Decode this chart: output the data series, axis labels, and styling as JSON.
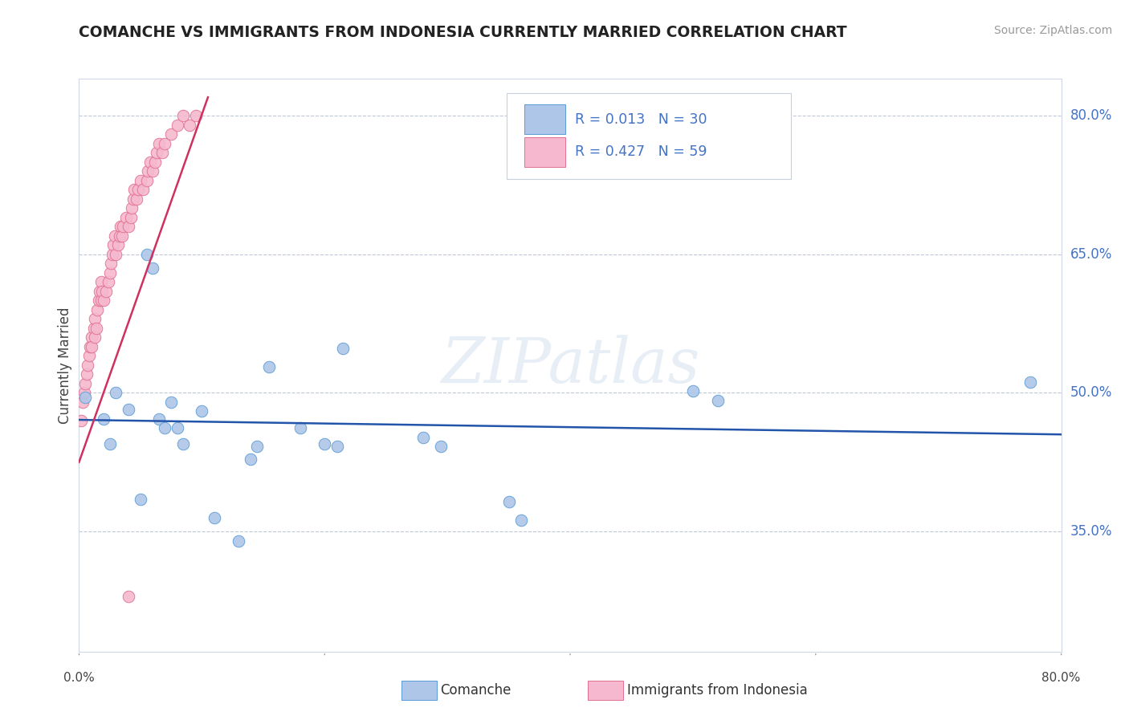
{
  "title": "COMANCHE VS IMMIGRANTS FROM INDONESIA CURRENTLY MARRIED CORRELATION CHART",
  "source_text": "Source: ZipAtlas.com",
  "ylabel": "Currently Married",
  "ytick_labels": [
    "80.0%",
    "65.0%",
    "50.0%",
    "35.0%"
  ],
  "ytick_values": [
    0.8,
    0.65,
    0.5,
    0.35
  ],
  "xlim": [
    0.0,
    0.8
  ],
  "ylim": [
    0.22,
    0.84
  ],
  "comanche_color": "#aec6e8",
  "indonesia_color": "#f5b8ce",
  "comanche_edge": "#5b9bd5",
  "indonesia_edge": "#e07090",
  "line_comanche": "#2255aa",
  "line_indonesia": "#d03060",
  "comanche_x": [
    0.005,
    0.02,
    0.025,
    0.03,
    0.04,
    0.05,
    0.055,
    0.06,
    0.065,
    0.07,
    0.075,
    0.08,
    0.085,
    0.1,
    0.11,
    0.13,
    0.14,
    0.145,
    0.155,
    0.18,
    0.2,
    0.21,
    0.215,
    0.28,
    0.295,
    0.35,
    0.36,
    0.5,
    0.52,
    0.775
  ],
  "comanche_y": [
    0.495,
    0.472,
    0.445,
    0.5,
    0.482,
    0.385,
    0.65,
    0.635,
    0.472,
    0.462,
    0.49,
    0.462,
    0.445,
    0.48,
    0.365,
    0.34,
    0.428,
    0.442,
    0.528,
    0.462,
    0.445,
    0.442,
    0.548,
    0.452,
    0.442,
    0.382,
    0.362,
    0.502,
    0.492,
    0.512
  ],
  "indonesia_x": [
    0.002,
    0.003,
    0.004,
    0.005,
    0.006,
    0.007,
    0.008,
    0.009,
    0.01,
    0.01,
    0.012,
    0.013,
    0.013,
    0.014,
    0.015,
    0.016,
    0.017,
    0.018,
    0.018,
    0.019,
    0.02,
    0.022,
    0.024,
    0.025,
    0.026,
    0.027,
    0.028,
    0.029,
    0.03,
    0.032,
    0.033,
    0.034,
    0.035,
    0.036,
    0.038,
    0.04,
    0.042,
    0.043,
    0.044,
    0.045,
    0.047,
    0.048,
    0.05,
    0.052,
    0.055,
    0.056,
    0.058,
    0.06,
    0.062,
    0.063,
    0.065,
    0.068,
    0.07,
    0.075,
    0.08,
    0.085,
    0.09,
    0.095,
    0.04
  ],
  "indonesia_y": [
    0.47,
    0.49,
    0.5,
    0.51,
    0.52,
    0.53,
    0.54,
    0.55,
    0.56,
    0.55,
    0.57,
    0.56,
    0.58,
    0.57,
    0.59,
    0.6,
    0.61,
    0.62,
    0.6,
    0.61,
    0.6,
    0.61,
    0.62,
    0.63,
    0.64,
    0.65,
    0.66,
    0.67,
    0.65,
    0.66,
    0.67,
    0.68,
    0.67,
    0.68,
    0.69,
    0.68,
    0.69,
    0.7,
    0.71,
    0.72,
    0.71,
    0.72,
    0.73,
    0.72,
    0.73,
    0.74,
    0.75,
    0.74,
    0.75,
    0.76,
    0.77,
    0.76,
    0.77,
    0.78,
    0.79,
    0.8,
    0.79,
    0.8,
    0.28
  ],
  "indonesia_line_x": [
    0.0,
    0.105
  ],
  "indonesia_line_y": [
    0.425,
    0.82
  ]
}
